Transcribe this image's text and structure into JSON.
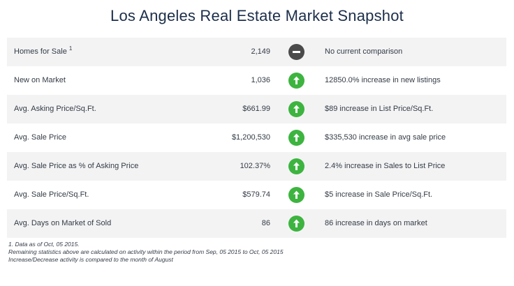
{
  "title": "Los Angeles Real Estate Market Snapshot",
  "colors": {
    "title": "#1c2e4a",
    "up_indicator": "#3db43f",
    "no_change_indicator": "#4a4a4a",
    "row_shading": "#f3f3f4"
  },
  "rows": [
    {
      "label": "Homes for Sale",
      "footnote_mark": "1",
      "value": "2,149",
      "indicator": "minus-icon",
      "comparison": "No current comparison"
    },
    {
      "label": "New on Market",
      "value": "1,036",
      "indicator": "arrow-up-icon",
      "comparison": "12850.0% increase in new listings"
    },
    {
      "label": "Avg. Asking Price/Sq.Ft.",
      "value": "$661.99",
      "indicator": "arrow-up-icon",
      "comparison": "$89 increase in List Price/Sq.Ft."
    },
    {
      "label": "Avg. Sale Price",
      "value": "$1,200,530",
      "indicator": "arrow-up-icon",
      "comparison": "$335,530 increase in avg sale price"
    },
    {
      "label": "Avg. Sale Price as % of Asking Price",
      "value": "102.37%",
      "indicator": "arrow-up-icon",
      "comparison": "2.4% increase in Sales to List Price"
    },
    {
      "label": "Avg. Sale Price/Sq.Ft.",
      "value": "$579.74",
      "indicator": "arrow-up-icon",
      "comparison": "$5 increase in Sale Price/Sq.Ft."
    },
    {
      "label": "Avg. Days on Market of Sold",
      "value": "86",
      "indicator": "arrow-up-icon",
      "comparison": "86 increase in days on market"
    }
  ],
  "footnotes": [
    "1. Data as of Oct, 05 2015.",
    "Remaining statistics above are calculated on activity within the period from Sep, 05 2015 to Oct, 05 2015",
    "Increase/Decrease activity is compared to the month of August"
  ]
}
